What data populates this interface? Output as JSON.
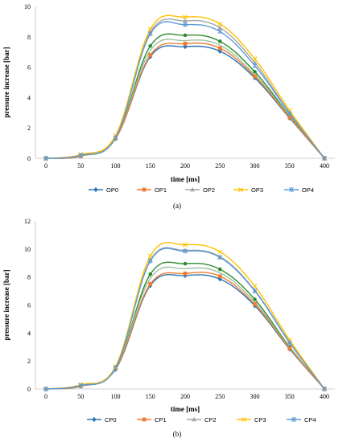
{
  "chart_data": [
    {
      "type": "line",
      "caption": "(a)",
      "xlabel": "time [ms]",
      "ylabel": "pressure increase [bar]",
      "xlim": [
        -15,
        415
      ],
      "ylim": [
        0,
        10
      ],
      "x_ticks": [
        0,
        50,
        100,
        150,
        200,
        250,
        300,
        350,
        400
      ],
      "y_ticks": [
        0,
        2,
        4,
        6,
        8,
        10
      ],
      "grid": false,
      "legend_position": "bottom",
      "x": [
        0,
        50,
        100,
        150,
        200,
        250,
        300,
        350,
        400
      ],
      "series": [
        {
          "name": "OP0",
          "color": "#2E75B6",
          "marker": "diamond",
          "values": [
            0,
            0.15,
            1.3,
            6.7,
            7.35,
            7.05,
            5.3,
            2.65,
            0
          ]
        },
        {
          "name": "OP1",
          "color": "#ED7D31",
          "marker": "square",
          "values": [
            0,
            0.15,
            1.3,
            6.8,
            7.55,
            7.25,
            5.4,
            2.7,
            0
          ]
        },
        {
          "name": "OP2",
          "color": "#A5A5A5",
          "marker": "triangle",
          "values": [
            0,
            0.2,
            1.4,
            8.3,
            9.05,
            8.6,
            6.3,
            3.0,
            0
          ]
        },
        {
          "name": "OP3",
          "color": "#FFC000",
          "marker": "x",
          "values": [
            0,
            0.25,
            1.5,
            8.5,
            9.3,
            8.85,
            6.55,
            3.15,
            0
          ]
        },
        {
          "name": "OP4",
          "color": "#5B9BD5",
          "marker": "star",
          "values": [
            0,
            0.2,
            1.35,
            8.2,
            8.8,
            8.35,
            6.1,
            2.95,
            0
          ]
        },
        {
          "name": "",
          "color": "#2E8B2E",
          "marker": "circle",
          "values": [
            0,
            0.15,
            1.3,
            7.4,
            8.1,
            7.7,
            5.7,
            2.8,
            0
          ]
        },
        {
          "name": "",
          "color": "#9DC3A3",
          "marker": "none",
          "values": [
            0,
            0.15,
            1.3,
            7.1,
            7.75,
            7.45,
            5.5,
            2.75,
            0
          ]
        }
      ]
    },
    {
      "type": "line",
      "caption": "(b)",
      "xlabel": "time [ms]",
      "ylabel": "pressure increase [bar]",
      "xlim": [
        -15,
        415
      ],
      "ylim": [
        0,
        12
      ],
      "x_ticks": [
        0,
        50,
        100,
        150,
        200,
        250,
        300,
        350,
        400
      ],
      "y_ticks": [
        0,
        2,
        4,
        6,
        8,
        10,
        12
      ],
      "grid": false,
      "legend_position": "bottom",
      "x": [
        0,
        50,
        100,
        150,
        200,
        250,
        300,
        350,
        400
      ],
      "series": [
        {
          "name": "CP0",
          "color": "#2E75B6",
          "marker": "diamond",
          "values": [
            0,
            0.2,
            1.4,
            7.4,
            8.1,
            7.85,
            5.95,
            2.85,
            0
          ]
        },
        {
          "name": "CP1",
          "color": "#ED7D31",
          "marker": "square",
          "values": [
            0,
            0.2,
            1.45,
            7.5,
            8.25,
            8.05,
            6.05,
            2.9,
            0
          ]
        },
        {
          "name": "CP2",
          "color": "#A5A5A5",
          "marker": "triangle",
          "values": [
            0,
            0.25,
            1.55,
            9.2,
            9.9,
            9.45,
            7.05,
            3.35,
            0
          ]
        },
        {
          "name": "CP3",
          "color": "#FFC000",
          "marker": "x",
          "values": [
            0,
            0.3,
            1.6,
            9.5,
            10.3,
            9.8,
            7.35,
            3.5,
            0
          ]
        },
        {
          "name": "CP4",
          "color": "#5B9BD5",
          "marker": "star",
          "values": [
            0,
            0.25,
            1.5,
            9.15,
            9.85,
            9.4,
            7.0,
            3.3,
            0
          ]
        },
        {
          "name": "",
          "color": "#2E8B2E",
          "marker": "circle",
          "values": [
            0,
            0.2,
            1.45,
            8.2,
            8.95,
            8.55,
            6.4,
            3.0,
            0
          ]
        },
        {
          "name": "",
          "color": "#9DC3A3",
          "marker": "none",
          "values": [
            0,
            0.2,
            1.45,
            7.9,
            8.6,
            8.3,
            6.2,
            2.95,
            0
          ]
        }
      ]
    }
  ]
}
